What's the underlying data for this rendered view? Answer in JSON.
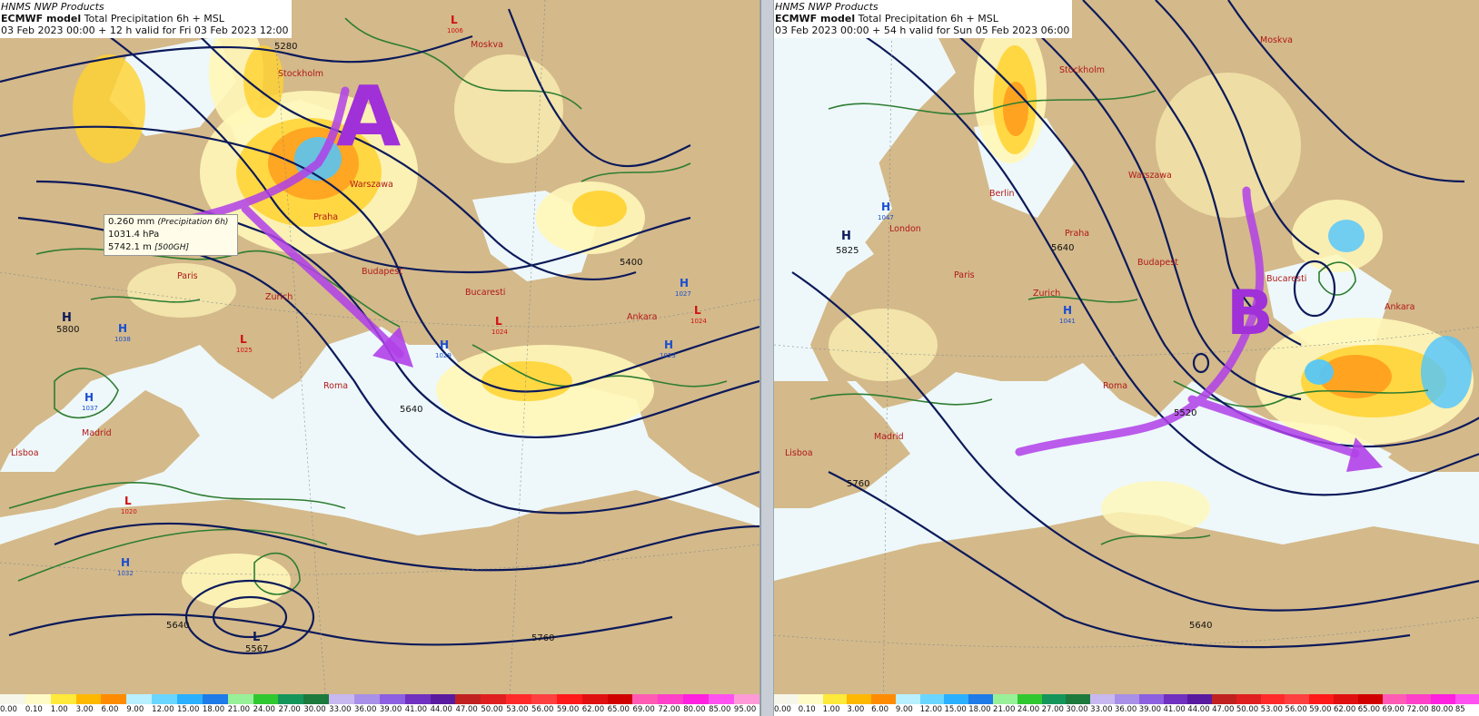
{
  "panels": [
    {
      "product": "HNMS NWP Products",
      "model": "ECMWF model",
      "field": "Total Precipitation 6h + MSL",
      "validity": "03 Feb 2023 00:00 + 12 h valid for Fri 03 Feb 2023 12:00",
      "annotation_letter": "A",
      "tooltip": {
        "line1_value": "0.260 mm",
        "line1_desc": "(Precipitation 6h)",
        "line2_value": "1031.4 hPa",
        "line3_value": "5742.1 m",
        "line3_desc": "[500GH]"
      },
      "cities": [
        "Stockholm",
        "Moskva",
        "Warszawa",
        "Praha",
        "Budapest",
        "Paris",
        "Zurich",
        "Bucaresti",
        "Ankara",
        "Roma",
        "Madrid",
        "Lisboa"
      ],
      "highs": [
        {
          "label": "H",
          "value": "1038"
        },
        {
          "label": "H",
          "value": "1037"
        },
        {
          "label": "H",
          "value": "1032"
        },
        {
          "label": "H",
          "value": "1029"
        },
        {
          "label": "H",
          "value": "1027"
        },
        {
          "label": "H",
          "value": "1023"
        }
      ],
      "lows": [
        {
          "label": "L",
          "value": "1006"
        },
        {
          "label": "L",
          "value": "1025"
        },
        {
          "label": "L",
          "value": "1024"
        },
        {
          "label": "L",
          "value": "1024"
        },
        {
          "label": "L",
          "value": "1020"
        }
      ],
      "geopotential_labels": [
        "5280",
        "5400",
        "5640",
        "5760",
        "5800",
        "5567"
      ],
      "upper_centers": [
        {
          "label": "H",
          "value": "5800"
        },
        {
          "label": "L",
          "value": "5567"
        }
      ]
    },
    {
      "product": "HNMS NWP Products",
      "model": "ECMWF model",
      "field": "Total Precipitation 6h + MSL",
      "validity": "03 Feb 2023 00:00 + 54 h valid for Sun 05 Feb 2023 06:00",
      "annotation_letter": "B",
      "cities": [
        "Stockholm",
        "Moskva",
        "Berlin",
        "Warszawa",
        "London",
        "Praha",
        "Paris",
        "Zurich",
        "Budapest",
        "Bucaresti",
        "Roma",
        "Ankara",
        "Madrid",
        "Lisboa"
      ],
      "highs": [
        {
          "label": "H",
          "value": "1047"
        },
        {
          "label": "H",
          "value": "1041"
        }
      ],
      "lows": [],
      "geopotential_labels": [
        "5640",
        "5520",
        "5760",
        "5825",
        "5640"
      ],
      "upper_centers": [
        {
          "label": "H",
          "value": "5825"
        }
      ]
    }
  ],
  "legend": {
    "values": [
      "0.00",
      "0.10",
      "1.00",
      "3.00",
      "6.00",
      "9.00",
      "12.00",
      "15.00",
      "18.00",
      "21.00",
      "24.00",
      "27.00",
      "30.00",
      "33.00",
      "36.00",
      "39.00",
      "41.00",
      "44.00",
      "47.00",
      "50.00",
      "53.00",
      "56.00",
      "59.00",
      "62.00",
      "65.00",
      "69.00",
      "72.00",
      "80.00",
      "85.00",
      "95.00"
    ],
    "colors": [
      "#f6f7ea",
      "#fffbc6",
      "#ffe93a",
      "#ffb800",
      "#ff8c00",
      "#b8f0ff",
      "#6ad6ff",
      "#2ab0ff",
      "#1e7be8",
      "#98f098",
      "#30c830",
      "#14965a",
      "#1c7a3c",
      "#c8b8f0",
      "#a890e8",
      "#8c60e0",
      "#7030c0",
      "#5a1aa0",
      "#c02020",
      "#e02020",
      "#ff2a2a",
      "#ff4040",
      "#ff1a1a",
      "#e01010",
      "#d00000",
      "#ff5ab4",
      "#ff40c8",
      "#ff20e0",
      "#ff50f0",
      "#ff9ad8"
    ]
  },
  "legend_right": {
    "values": [
      "0.00",
      "0.10",
      "1.00",
      "3.00",
      "6.00",
      "9.00",
      "12.00",
      "15.00",
      "18.00",
      "21.00",
      "24.00",
      "27.00",
      "30.00",
      "33.00",
      "36.00",
      "39.00",
      "41.00",
      "44.00",
      "47.00",
      "50.00",
      "53.00",
      "56.00",
      "59.00",
      "62.00",
      "65.00",
      "69.00",
      "72.00",
      "80.00",
      "85"
    ]
  },
  "colors": {
    "land": "#d4b98a",
    "sea": "#eef8fa",
    "isobar": "#2e7d32",
    "geopotential": "#0c1a5a",
    "annotation": "#b040e8",
    "rain_light": "#fff7b8",
    "rain_mod": "#ffd22e",
    "rain_heavy": "#ff9a1a",
    "rain_blue": "#4fc6ff"
  }
}
